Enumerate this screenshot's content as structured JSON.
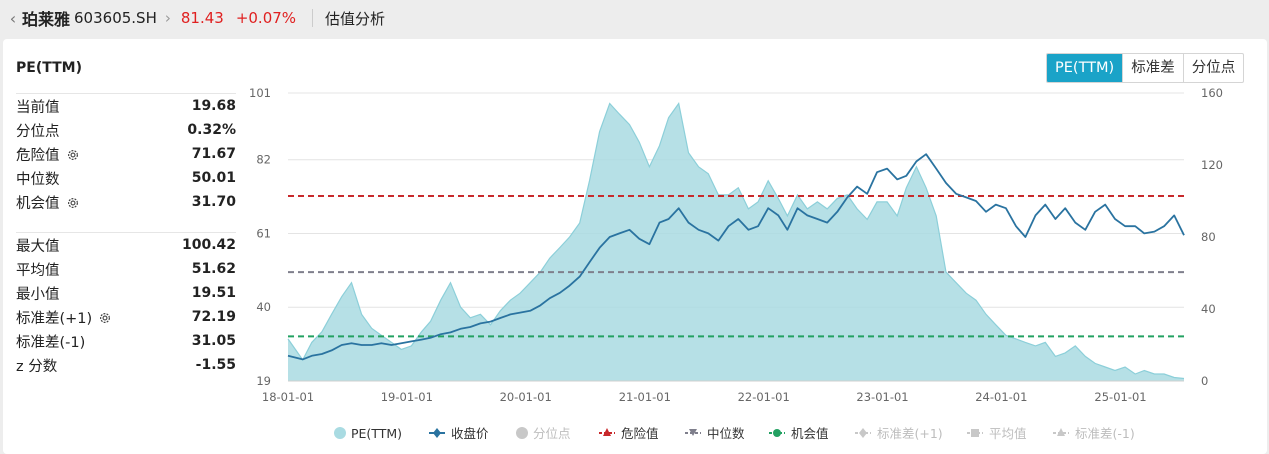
{
  "header": {
    "back_glyph": "‹",
    "stock_name": "珀莱雅",
    "stock_code": "603605.SH",
    "arrow_glyph": "›",
    "price": "81.43",
    "change": "+0.07%",
    "page_title": "估值分析"
  },
  "panel": {
    "metric_title": "PE(TTM)",
    "tabs": [
      {
        "label": "PE(TTM)",
        "active": true
      },
      {
        "label": "标准差",
        "active": false
      },
      {
        "label": "分位点",
        "active": false
      }
    ],
    "stats_group1": [
      {
        "label": "当前值",
        "value": "19.68",
        "gear": false
      },
      {
        "label": "分位点",
        "value": "0.32%",
        "gear": false
      },
      {
        "label": "危险值",
        "value": "71.67",
        "gear": true
      },
      {
        "label": "中位数",
        "value": "50.01",
        "gear": false
      },
      {
        "label": "机会值",
        "value": "31.70",
        "gear": true
      }
    ],
    "stats_group2": [
      {
        "label": "最大值",
        "value": "100.42",
        "gear": false
      },
      {
        "label": "平均值",
        "value": "51.62",
        "gear": false
      },
      {
        "label": "最小值",
        "value": "19.51",
        "gear": false
      },
      {
        "label": "标准差(+1)",
        "value": "72.19",
        "gear": true
      },
      {
        "label": "标准差(-1)",
        "value": "31.05",
        "gear": false
      },
      {
        "label": "z 分数",
        "value": "-1.55",
        "gear": false
      }
    ],
    "icons": {
      "gear": "gear-icon"
    }
  },
  "chart_data": {
    "type": "area",
    "x_ticks": [
      "18-01-01",
      "19-01-01",
      "20-01-01",
      "21-01-01",
      "22-01-01",
      "23-01-01",
      "24-01-01",
      "25-01-01"
    ],
    "y_left_ticks": [
      101,
      82,
      61,
      40,
      19
    ],
    "y_right_ticks": [
      160,
      120,
      80,
      40,
      0
    ],
    "y_left_range": [
      19,
      101
    ],
    "y_right_range": [
      0,
      160
    ],
    "x_range": [
      "2018-01-01",
      "2025-07-15"
    ],
    "grid": "horizontal",
    "legend_position": "bottom",
    "colors": {
      "pe_fill": "#a9dbe2",
      "pe_line": "#8ccfd9",
      "close_line": "#2a73a0",
      "danger": "#c8292b",
      "median": "#7f7f8c",
      "opportunity": "#23a162",
      "legend_inactive": "#c8c8c8"
    },
    "reference_lines": [
      {
        "name": "危险值",
        "value": 71.67
      },
      {
        "name": "中位数",
        "value": 50.01
      },
      {
        "name": "机会值",
        "value": 31.7
      }
    ],
    "series": [
      {
        "name": "PE(TTM)",
        "axis": "left",
        "x": [
          "2018-01",
          "2018-02",
          "2018-03",
          "2018-04",
          "2018-05",
          "2018-06",
          "2018-07",
          "2018-08",
          "2018-09",
          "2018-10",
          "2018-11",
          "2018-12",
          "2019-01",
          "2019-02",
          "2019-03",
          "2019-04",
          "2019-05",
          "2019-06",
          "2019-07",
          "2019-08",
          "2019-09",
          "2019-10",
          "2019-11",
          "2019-12",
          "2020-01",
          "2020-02",
          "2020-03",
          "2020-04",
          "2020-05",
          "2020-06",
          "2020-07",
          "2020-08",
          "2020-09",
          "2020-10",
          "2020-11",
          "2020-12",
          "2021-01",
          "2021-02",
          "2021-03",
          "2021-04",
          "2021-05",
          "2021-06",
          "2021-07",
          "2021-08",
          "2021-09",
          "2021-10",
          "2021-11",
          "2021-12",
          "2022-01",
          "2022-02",
          "2022-03",
          "2022-04",
          "2022-05",
          "2022-06",
          "2022-07",
          "2022-08",
          "2022-09",
          "2022-10",
          "2022-11",
          "2022-12",
          "2023-01",
          "2023-02",
          "2023-03",
          "2023-04",
          "2023-05",
          "2023-06",
          "2023-07",
          "2023-08",
          "2023-09",
          "2023-10",
          "2023-11",
          "2023-12",
          "2024-01",
          "2024-02",
          "2024-03",
          "2024-04",
          "2024-05",
          "2024-06",
          "2024-07",
          "2024-08",
          "2024-09",
          "2024-10",
          "2024-11",
          "2024-12",
          "2025-01",
          "2025-02",
          "2025-03",
          "2025-04",
          "2025-05",
          "2025-06",
          "2025-07"
        ],
        "values": [
          31,
          25,
          30,
          33,
          38,
          43,
          47,
          38,
          34,
          32,
          30,
          28,
          29,
          33,
          36,
          42,
          47,
          40,
          37,
          38,
          35,
          39,
          42,
          44,
          47,
          50,
          54,
          57,
          60,
          64,
          76,
          90,
          98,
          95,
          92,
          87,
          80,
          86,
          94,
          98,
          84,
          80,
          78,
          72,
          72,
          74,
          68,
          70,
          76,
          71,
          66,
          72,
          68,
          70,
          68,
          71,
          72,
          68,
          65,
          70,
          70,
          66,
          74,
          80,
          74,
          66,
          50,
          47,
          44,
          42,
          38,
          35,
          32,
          31,
          30,
          29,
          30,
          26,
          27,
          29,
          26,
          24,
          23,
          22,
          23,
          21,
          22,
          21,
          21,
          20,
          19.7
        ]
      },
      {
        "name": "收盘价",
        "axis": "right",
        "x": [
          "2018-01",
          "2018-02",
          "2018-03",
          "2018-04",
          "2018-05",
          "2018-06",
          "2018-07",
          "2018-08",
          "2018-09",
          "2018-10",
          "2018-11",
          "2018-12",
          "2019-01",
          "2019-02",
          "2019-03",
          "2019-04",
          "2019-05",
          "2019-06",
          "2019-07",
          "2019-08",
          "2019-09",
          "2019-10",
          "2019-11",
          "2019-12",
          "2020-01",
          "2020-02",
          "2020-03",
          "2020-04",
          "2020-05",
          "2020-06",
          "2020-07",
          "2020-08",
          "2020-09",
          "2020-10",
          "2020-11",
          "2020-12",
          "2021-01",
          "2021-02",
          "2021-03",
          "2021-04",
          "2021-05",
          "2021-06",
          "2021-07",
          "2021-08",
          "2021-09",
          "2021-10",
          "2021-11",
          "2021-12",
          "2022-01",
          "2022-02",
          "2022-03",
          "2022-04",
          "2022-05",
          "2022-06",
          "2022-07",
          "2022-08",
          "2022-09",
          "2022-10",
          "2022-11",
          "2022-12",
          "2023-01",
          "2023-02",
          "2023-03",
          "2023-04",
          "2023-05",
          "2023-06",
          "2023-07",
          "2023-08",
          "2023-09",
          "2023-10",
          "2023-11",
          "2023-12",
          "2024-01",
          "2024-02",
          "2024-03",
          "2024-04",
          "2024-05",
          "2024-06",
          "2024-07",
          "2024-08",
          "2024-09",
          "2024-10",
          "2024-11",
          "2024-12",
          "2025-01",
          "2025-02",
          "2025-03",
          "2025-04",
          "2025-05",
          "2025-06",
          "2025-07"
        ],
        "values": [
          14,
          12,
          14,
          15,
          17,
          20,
          21,
          20,
          20,
          21,
          20,
          21,
          22,
          23,
          24,
          26,
          27,
          29,
          30,
          32,
          33,
          35,
          37,
          38,
          39,
          42,
          46,
          49,
          53,
          58,
          66,
          74,
          80,
          82,
          84,
          79,
          76,
          88,
          90,
          96,
          88,
          84,
          82,
          78,
          86,
          90,
          84,
          86,
          96,
          92,
          84,
          96,
          92,
          90,
          88,
          94,
          102,
          108,
          104,
          116,
          118,
          112,
          114,
          122,
          126,
          118,
          110,
          104,
          102,
          100,
          94,
          98,
          96,
          86,
          80,
          92,
          98,
          90,
          96,
          88,
          84,
          94,
          98,
          90,
          86,
          86,
          82,
          83,
          86,
          92,
          81
        ]
      }
    ],
    "legend": [
      {
        "name": "PE(TTM)",
        "marker": "circle",
        "active": true
      },
      {
        "name": "收盘价",
        "marker": "line-diamond",
        "active": true
      },
      {
        "name": "分位点",
        "marker": "circle",
        "active": false
      },
      {
        "name": "危险值",
        "marker": "dash-triangle",
        "active": true
      },
      {
        "name": "中位数",
        "marker": "dash-triangle-down",
        "active": true
      },
      {
        "name": "机会值",
        "marker": "dash-circle",
        "active": true
      },
      {
        "name": "标准差(+1)",
        "marker": "dash-diamond",
        "active": false
      },
      {
        "name": "平均值",
        "marker": "dash-square",
        "active": false
      },
      {
        "name": "标准差(-1)",
        "marker": "dash-triangle",
        "active": false
      }
    ]
  }
}
